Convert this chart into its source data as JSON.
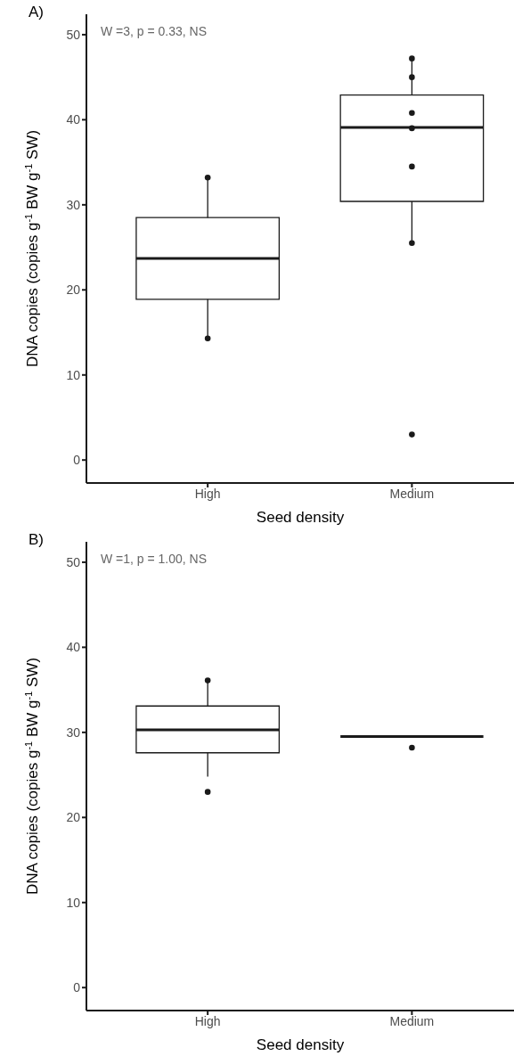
{
  "chart_data": [
    {
      "type": "box",
      "color": "#1a1a1a",
      "title": "A)",
      "xlabel": "Seed density",
      "ylabel": "DNA copies (copies g$^{-1}$ BW g$^{-1}$ SW)",
      "categories": [
        "High",
        "Medium"
      ],
      "boxes": [
        {
          "low": 14.0,
          "q1": 18.9,
          "median": 23.7,
          "q3": 28.5,
          "high": 33.3
        },
        {
          "low": 25.5,
          "q1": 30.4,
          "median": 39.1,
          "q3": 42.9,
          "high": 47.4
        }
      ],
      "series": [
        {
          "type": "scatter",
          "color": "#1a1a1a",
          "x": [
            "High",
            "High",
            "Medium",
            "Medium",
            "Medium",
            "Medium",
            "Medium",
            "Medium",
            "Medium"
          ],
          "values": [
            33.2,
            14.3,
            47.2,
            45.0,
            40.8,
            39.0,
            34.5,
            25.5,
            3.0
          ]
        }
      ],
      "ylim": [
        -2.7,
        52.4
      ],
      "yticks": [
        0,
        10,
        20,
        30,
        40,
        50
      ],
      "annotations": [
        "W =3, p = 0.33, NS"
      ]
    },
    {
      "type": "box",
      "color": "#1a1a1a",
      "title": "B)",
      "xlabel": "Seed density",
      "ylabel": "DNA copies (copies g$^{-1}$ BW g$^{-1}$ SW)",
      "categories": [
        "High",
        "Medium"
      ],
      "boxes": [
        {
          "low": 24.8,
          "q1": 27.6,
          "median": 30.3,
          "q3": 33.1,
          "high": 36.0
        },
        {
          "low": 29.5,
          "q1": 29.5,
          "median": 29.5,
          "q3": 29.5,
          "high": 29.5
        }
      ],
      "series": [
        {
          "type": "scatter",
          "color": "#1a1a1a",
          "x": [
            "High",
            "High",
            "Medium"
          ],
          "values": [
            36.1,
            23.0,
            28.2
          ]
        }
      ],
      "ylim": [
        -2.7,
        52.4
      ],
      "yticks": [
        0,
        10,
        20,
        30,
        40,
        50
      ],
      "annotations": [
        "W =1, p = 1.00, NS"
      ]
    }
  ]
}
